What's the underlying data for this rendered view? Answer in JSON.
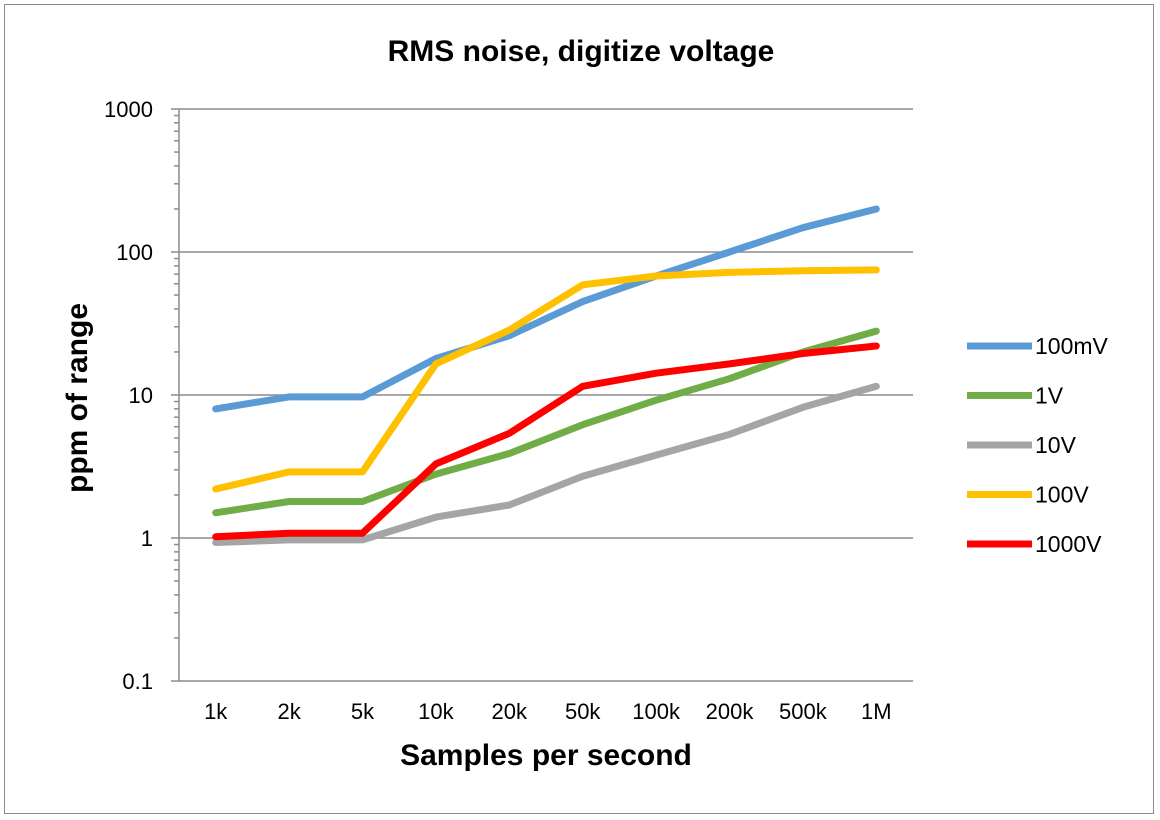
{
  "chart_data": {
    "type": "line",
    "title": "RMS noise, digitize voltage",
    "xlabel": "Samples per second",
    "ylabel": "ppm of range",
    "yscale": "log",
    "ylim": [
      0.1,
      1000
    ],
    "yticks": [
      0.1,
      1,
      10,
      100,
      1000
    ],
    "ytick_labels": [
      "0.1",
      "1",
      "10",
      "100",
      "1000"
    ],
    "grid": "horizontal major",
    "legend": "right",
    "categories": [
      "1k",
      "2k",
      "5k",
      "10k",
      "20k",
      "50k",
      "100k",
      "200k",
      "500k",
      "1M"
    ],
    "series": [
      {
        "name": "100mV",
        "color": "#5b9bd5",
        "values": [
          8,
          9.7,
          9.7,
          18,
          26,
          45,
          68,
          100,
          148,
          200
        ]
      },
      {
        "name": "1V",
        "color": "#70ad47",
        "values": [
          1.5,
          1.8,
          1.8,
          2.8,
          3.9,
          6.2,
          9.2,
          13,
          20,
          28
        ]
      },
      {
        "name": "10V",
        "color": "#a5a5a5",
        "values": [
          0.93,
          0.97,
          0.97,
          1.4,
          1.7,
          2.7,
          3.8,
          5.3,
          8.2,
          11.5
        ]
      },
      {
        "name": "100V",
        "color": "#ffc000",
        "values": [
          2.2,
          2.9,
          2.9,
          16.5,
          28.5,
          59,
          68,
          72,
          74,
          75
        ]
      },
      {
        "name": "1000V",
        "color": "#ff0000",
        "values": [
          1.02,
          1.08,
          1.08,
          3.3,
          5.4,
          11.5,
          14.2,
          16.5,
          19.5,
          22
        ]
      }
    ]
  }
}
